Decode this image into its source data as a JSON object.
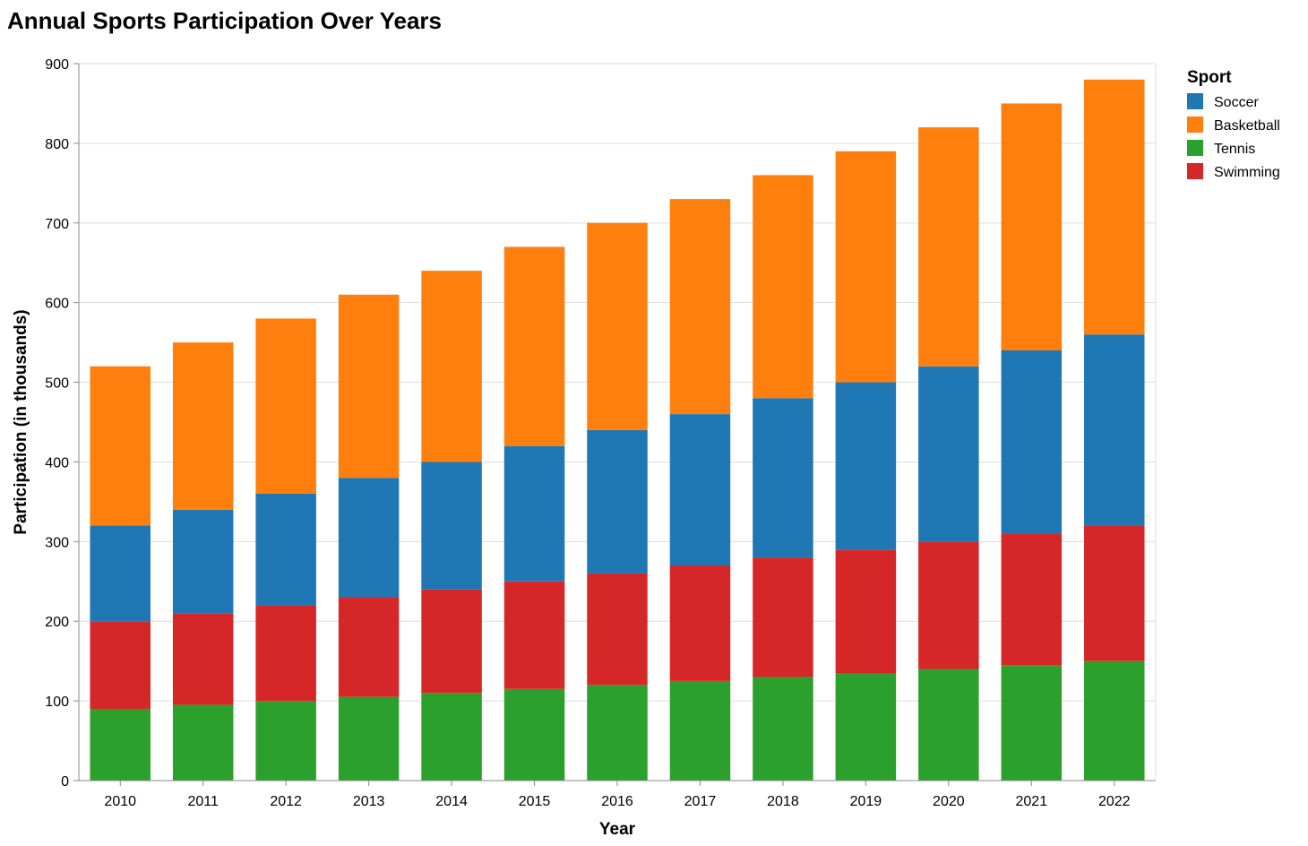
{
  "chart_data": {
    "type": "bar",
    "stacked": true,
    "title": "Annual Sports Participation Over Years",
    "xlabel": "Year",
    "ylabel": "Participation (in thousands)",
    "ylim": [
      0,
      900
    ],
    "yticks": [
      0,
      100,
      200,
      300,
      400,
      500,
      600,
      700,
      800,
      900
    ],
    "grid": true,
    "legend_title": "Sport",
    "legend_position": "right",
    "categories": [
      "2010",
      "2011",
      "2012",
      "2013",
      "2014",
      "2015",
      "2016",
      "2017",
      "2018",
      "2019",
      "2020",
      "2021",
      "2022"
    ],
    "stack_order": [
      "Tennis",
      "Swimming",
      "Soccer",
      "Basketball"
    ],
    "series": [
      {
        "name": "Soccer",
        "color": "#1f77b4",
        "values": [
          120,
          130,
          140,
          150,
          160,
          170,
          180,
          190,
          200,
          210,
          220,
          230,
          240
        ]
      },
      {
        "name": "Basketball",
        "color": "#ff7f0e",
        "values": [
          200,
          210,
          220,
          230,
          240,
          250,
          260,
          270,
          280,
          290,
          300,
          310,
          320
        ]
      },
      {
        "name": "Tennis",
        "color": "#2ca02c",
        "values": [
          90,
          95,
          100,
          105,
          110,
          115,
          120,
          125,
          130,
          135,
          140,
          145,
          150
        ]
      },
      {
        "name": "Swimming",
        "color": "#d62728",
        "values": [
          110,
          115,
          120,
          125,
          130,
          135,
          140,
          145,
          150,
          155,
          160,
          165,
          170
        ]
      }
    ]
  }
}
